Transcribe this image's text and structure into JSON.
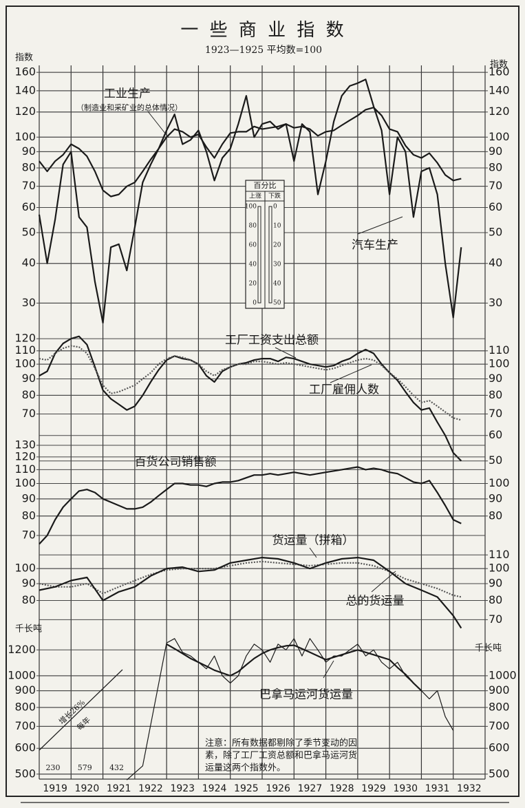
{
  "chart_data": [
    {
      "type": "line",
      "title": "一 些 商 业 指 数",
      "subtitle": "1923—1925 平均数=100",
      "y_label": "指数",
      "note_sub": "（制造业和采矿业的总体情况）",
      "log": true,
      "xlim": [
        1919,
        1933
      ],
      "ylim": [
        26,
        170
      ],
      "yticks": [
        30,
        40,
        50,
        60,
        70,
        80,
        90,
        100,
        120,
        140,
        160
      ],
      "y2lim": [
        26,
        170
      ],
      "y2ticks": [
        30,
        40,
        50,
        60,
        70,
        80,
        90,
        100,
        120,
        140,
        160
      ],
      "x": [
        1919,
        1919.25,
        1919.5,
        1919.75,
        1920,
        1920.25,
        1920.5,
        1920.75,
        1921,
        1921.25,
        1921.5,
        1921.75,
        1922,
        1922.25,
        1922.5,
        1922.75,
        1923,
        1923.25,
        1923.5,
        1923.75,
        1924,
        1924.25,
        1924.5,
        1924.75,
        1925,
        1925.25,
        1925.5,
        1925.75,
        1926,
        1926.25,
        1926.5,
        1926.75,
        1927,
        1927.25,
        1927.5,
        1927.75,
        1928,
        1928.25,
        1928.5,
        1928.75,
        1929,
        1929.25,
        1929.5,
        1929.75,
        1930,
        1930.25,
        1930.5,
        1930.75,
        1931,
        1931.25,
        1931.5,
        1931.75,
        1932,
        1932.25
      ],
      "series": [
        {
          "name": "工业生产",
          "color": "#1a1a1a",
          "style": "solid",
          "values": [
            84,
            78,
            84,
            88,
            95,
            92,
            87,
            78,
            68,
            65,
            66,
            70,
            72,
            78,
            85,
            92,
            100,
            106,
            104,
            100,
            102,
            93,
            86,
            95,
            103,
            104,
            104,
            108,
            106,
            107,
            108,
            110,
            107,
            108,
            106,
            101,
            104,
            105,
            109,
            113,
            117,
            122,
            124,
            117,
            106,
            104,
            94,
            88,
            86,
            89,
            83,
            76,
            73,
            74
          ]
        },
        {
          "name": "汽车生产",
          "color": "#1a1a1a",
          "style": "solid",
          "values": [
            57,
            40,
            55,
            82,
            90,
            56,
            52,
            35,
            26,
            45,
            46,
            38,
            52,
            72,
            82,
            92,
            105,
            118,
            95,
            98,
            105,
            90,
            73,
            86,
            92,
            110,
            135,
            100,
            110,
            112,
            106,
            110,
            84,
            110,
            104,
            66,
            84,
            112,
            135,
            145,
            148,
            152,
            125,
            105,
            66,
            100,
            90,
            56,
            78,
            80,
            66,
            40,
            27,
            45
          ]
        }
      ]
    },
    {
      "type": "line",
      "log": true,
      "xlim": [
        1919,
        1933
      ],
      "ylim": [
        48,
        128
      ],
      "yticks": [
        70,
        80,
        90,
        100,
        110,
        120
      ],
      "y2lim": [
        48,
        128
      ],
      "y2ticks": [
        50,
        60,
        70,
        80,
        90,
        100,
        110
      ],
      "x": [
        1919,
        1919.25,
        1919.5,
        1919.75,
        1920,
        1920.25,
        1920.5,
        1920.75,
        1921,
        1921.25,
        1921.5,
        1921.75,
        1922,
        1922.25,
        1922.5,
        1922.75,
        1923,
        1923.25,
        1923.5,
        1923.75,
        1924,
        1924.25,
        1924.5,
        1924.75,
        1925,
        1925.25,
        1925.5,
        1925.75,
        1926,
        1926.25,
        1926.5,
        1926.75,
        1927,
        1927.25,
        1927.5,
        1927.75,
        1928,
        1928.25,
        1928.5,
        1928.75,
        1929,
        1929.25,
        1929.5,
        1929.75,
        1930,
        1930.25,
        1930.5,
        1930.75,
        1931,
        1931.25,
        1931.5,
        1931.75,
        1932,
        1932.25
      ],
      "series": [
        {
          "name": "工厂工资支出总额",
          "color": "#1a1a1a",
          "style": "solid",
          "values": [
            92,
            95,
            108,
            116,
            120,
            122,
            115,
            98,
            83,
            78,
            75,
            72,
            74,
            80,
            88,
            96,
            103,
            106,
            104,
            103,
            100,
            92,
            88,
            95,
            98,
            100,
            101,
            103,
            104,
            104,
            102,
            105,
            104,
            102,
            100,
            99,
            98,
            99,
            102,
            104,
            108,
            111,
            108,
            100,
            94,
            89,
            82,
            76,
            72,
            73,
            66,
            60,
            53,
            50
          ]
        },
        {
          "name": "工厂雇佣人数",
          "color": "#555555",
          "style": "dotted",
          "values": [
            104,
            103,
            108,
            112,
            114,
            113,
            108,
            97,
            86,
            81,
            82,
            84,
            86,
            90,
            94,
            100,
            104,
            106,
            105,
            103,
            100,
            95,
            92,
            96,
            98,
            100,
            100,
            102,
            102,
            101,
            100,
            101,
            100,
            99,
            98,
            97,
            96,
            97,
            99,
            101,
            103,
            104,
            103,
            99,
            94,
            90,
            85,
            80,
            76,
            77,
            74,
            71,
            68,
            67
          ]
        }
      ]
    },
    {
      "type": "line",
      "log": true,
      "xlim": [
        1919,
        1933
      ],
      "ylim": [
        64,
        135
      ],
      "yticks": [
        70,
        80,
        90,
        100,
        110,
        120,
        130
      ],
      "y2lim": [
        64,
        135
      ],
      "y2ticks": [
        80,
        90,
        100
      ],
      "x": [
        1919,
        1919.25,
        1919.5,
        1919.75,
        1920,
        1920.25,
        1920.5,
        1920.75,
        1921,
        1921.25,
        1921.5,
        1921.75,
        1922,
        1922.25,
        1922.5,
        1922.75,
        1923,
        1923.25,
        1923.5,
        1923.75,
        1924,
        1924.25,
        1924.5,
        1924.75,
        1925,
        1925.25,
        1925.5,
        1925.75,
        1926,
        1926.25,
        1926.5,
        1926.75,
        1927,
        1927.25,
        1927.5,
        1927.75,
        1928,
        1928.25,
        1928.5,
        1928.75,
        1929,
        1929.25,
        1929.5,
        1929.75,
        1930,
        1930.25,
        1930.5,
        1930.75,
        1931,
        1931.25,
        1931.5,
        1931.75,
        1932,
        1932.25
      ],
      "series": [
        {
          "name": "百货公司销售额",
          "color": "#1a1a1a",
          "style": "solid",
          "values": [
            66,
            70,
            78,
            85,
            90,
            95,
            96,
            94,
            90,
            88,
            86,
            84,
            84,
            85,
            88,
            92,
            96,
            100,
            100,
            99,
            99,
            98,
            100,
            101,
            101,
            102,
            104,
            106,
            106,
            107,
            106,
            107,
            108,
            107,
            106,
            107,
            108,
            109,
            110,
            111,
            112,
            110,
            111,
            110,
            108,
            107,
            104,
            101,
            100,
            102,
            94,
            86,
            78,
            76
          ]
        }
      ]
    },
    {
      "type": "line",
      "log": true,
      "xlim": [
        1919,
        1933
      ],
      "ylim": [
        64,
        115
      ],
      "yticks": [
        80,
        90,
        100
      ],
      "y2lim": [
        64,
        115
      ],
      "y2ticks": [
        70,
        80,
        90,
        100,
        110
      ],
      "x": [
        1919,
        1919.5,
        1920,
        1920.5,
        1921,
        1921.5,
        1922,
        1922.5,
        1923,
        1923.5,
        1924,
        1924.5,
        1925,
        1925.5,
        1926,
        1926.5,
        1927,
        1927.5,
        1928,
        1928.5,
        1929,
        1929.5,
        1930,
        1930.5,
        1931,
        1931.5,
        1932,
        1932.25
      ],
      "series": [
        {
          "name": "货运量（拼箱）",
          "color": "#555555",
          "style": "dotted",
          "values": [
            90,
            88,
            88,
            90,
            84,
            88,
            92,
            96,
            99,
            100,
            100,
            100,
            102,
            104,
            105,
            104,
            103,
            102,
            103,
            104,
            104,
            102,
            98,
            93,
            90,
            87,
            83,
            82
          ]
        },
        {
          "name": "总的货运量",
          "color": "#1a1a1a",
          "style": "solid",
          "values": [
            86,
            88,
            92,
            94,
            80,
            85,
            88,
            95,
            100,
            101,
            98,
            99,
            104,
            106,
            108,
            107,
            104,
            100,
            104,
            107,
            108,
            106,
            98,
            90,
            86,
            82,
            72,
            66
          ]
        }
      ]
    },
    {
      "type": "line",
      "log": true,
      "y_label": "千长吨",
      "xlim": [
        1919,
        1933
      ],
      "xticks": [
        1919,
        1920,
        1921,
        1922,
        1923,
        1924,
        1925,
        1926,
        1927,
        1928,
        1929,
        1930,
        1931,
        1932
      ],
      "ylim": [
        460,
        1350
      ],
      "yticks": [
        500,
        600,
        700,
        800,
        900,
        1000,
        1200
      ],
      "y2lim": [
        460,
        1350
      ],
      "y2ticks": [
        500,
        600,
        700,
        800,
        900,
        1000
      ],
      "growth_label": [
        "增长26%",
        "每年"
      ],
      "annual": {
        "x": [
          1919,
          1920,
          1921
        ],
        "values": [
          230,
          579,
          432
        ]
      },
      "note": [
        "注意：所有数据都剔除了季节变动的因",
        "素，除了工厂工资总额和巴拿马运河货",
        "运量这两个指数外。"
      ],
      "x": [
        1921.75,
        1922.25,
        1923,
        1923.25,
        1923.5,
        1923.75,
        1924,
        1924.25,
        1924.5,
        1924.75,
        1925,
        1925.25,
        1925.5,
        1925.75,
        1926,
        1926.25,
        1926.5,
        1926.75,
        1927,
        1927.25,
        1927.5,
        1927.75,
        1928,
        1928.25,
        1928.5,
        1928.75,
        1929,
        1929.25,
        1929.5,
        1929.75,
        1930,
        1930.25,
        1930.5,
        1930.75,
        1931,
        1931.25,
        1931.5,
        1931.75,
        1932
      ],
      "series": [
        {
          "name": "巴拿马运河货运量",
          "color": "#1a1a1a",
          "style": "thin",
          "values": [
            480,
            530,
            1260,
            1300,
            1180,
            1150,
            1100,
            1050,
            1150,
            1000,
            950,
            1000,
            1150,
            1250,
            1200,
            1100,
            1250,
            1200,
            1300,
            1150,
            1300,
            1200,
            1100,
            1150,
            1150,
            1200,
            1250,
            1150,
            1200,
            1100,
            1050,
            1100,
            1000,
            950,
            900,
            850,
            900,
            750,
            680
          ]
        },
        {
          "color": "#1a1a1a",
          "style": "solid",
          "values": [
            null,
            null,
            1250,
            1210,
            1170,
            1130,
            1100,
            1070,
            1040,
            1020,
            1000,
            1030,
            1080,
            1130,
            1170,
            1200,
            1220,
            1235,
            1240,
            1210,
            1180,
            1150,
            1120,
            1140,
            1160,
            1180,
            1200,
            1180,
            1160,
            1140,
            1120,
            1060,
            1010,
            950,
            900,
            null,
            null,
            null,
            null
          ]
        }
      ]
    }
  ],
  "inset": {
    "title": "百分比",
    "headers": [
      "上涨",
      "下跌"
    ],
    "rise": [
      100,
      80,
      60,
      40,
      20,
      0
    ],
    "fall": [
      0,
      10,
      20,
      30,
      40,
      50
    ]
  }
}
